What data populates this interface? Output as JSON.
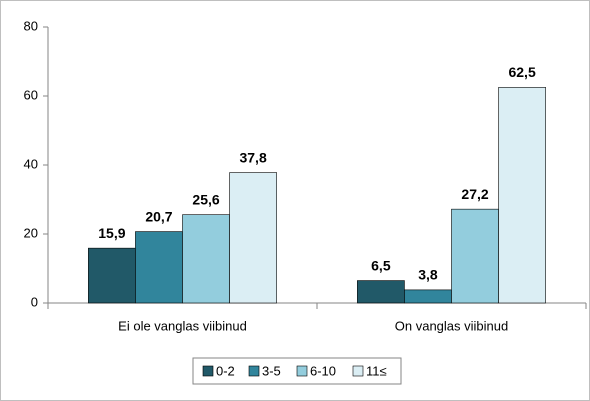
{
  "chart_data": {
    "type": "bar",
    "categories": [
      "Ei ole vanglas viibinud",
      "On vanglas viibinud"
    ],
    "series": [
      {
        "name": "0-2",
        "color": "#215968",
        "values": [
          15.9,
          6.5
        ],
        "value_labels": [
          "15,9",
          "6,5"
        ]
      },
      {
        "name": "3-5",
        "color": "#31859c",
        "values": [
          20.7,
          3.8
        ],
        "value_labels": [
          "20,7",
          "3,8"
        ]
      },
      {
        "name": "6-10",
        "color": "#93cddd",
        "values": [
          25.6,
          27.2
        ],
        "value_labels": [
          "25,6",
          "27,2"
        ]
      },
      {
        "name": "11≤",
        "color": "#dbeef4",
        "values": [
          37.8,
          62.5
        ],
        "value_labels": [
          "37,8",
          "62,5"
        ]
      }
    ],
    "ylim": [
      0,
      80
    ],
    "yticks": [
      0,
      20,
      40,
      60,
      80
    ],
    "grid": false,
    "legend": "bottom"
  }
}
